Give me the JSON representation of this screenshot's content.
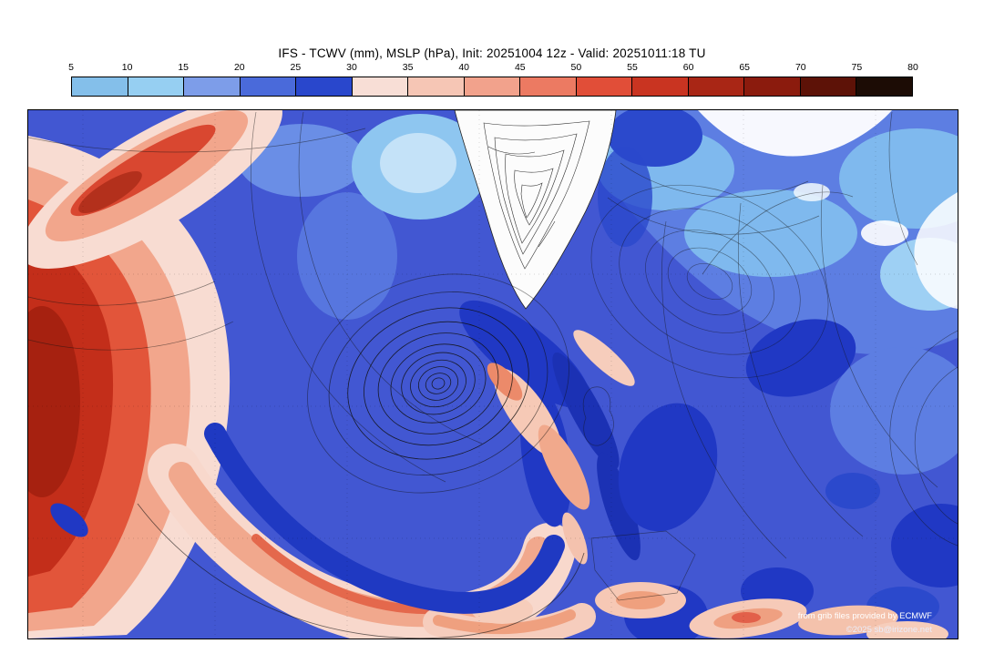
{
  "header": {
    "title": "IFS - TCWV (mm), MSLP (hPa), Init: 20251004 12z - Valid: 20251011:18 TU"
  },
  "colorbar": {
    "unit": "mm",
    "ticks": [
      "5",
      "10",
      "15",
      "20",
      "25",
      "30",
      "35",
      "40",
      "45",
      "50",
      "55",
      "60",
      "65",
      "70",
      "75",
      "80"
    ],
    "colors": [
      "#84bfea",
      "#96cff2",
      "#7d9de9",
      "#4a6ada",
      "#2947cc",
      "#f8ded6",
      "#f6c6b5",
      "#f2a28c",
      "#ec7a62",
      "#e14e38",
      "#c93421",
      "#a92615",
      "#8b1b0d",
      "#5d1207",
      "#1c0c05"
    ]
  },
  "map": {
    "credit_line1": "from grib files provided by ECMWF",
    "credit_line2": "©2025 sb@irizone.net"
  },
  "chart_data": {
    "type": "heatmap",
    "title": "IFS - TCWV (mm), MSLP (hPa), Init: 20251004 12z - Valid: 20251011:18 TU",
    "model": "IFS",
    "variables": [
      "TCWV (mm) filled colors",
      "MSLP (hPa) black contours"
    ],
    "init": "20251004 12z",
    "valid": "20251011:18 TU",
    "colorbar_ticks": [
      5,
      10,
      15,
      20,
      25,
      30,
      35,
      40,
      45,
      50,
      55,
      60,
      65,
      70,
      75,
      80
    ],
    "colorbar_colors": [
      "#84bfea",
      "#96cff2",
      "#7d9de9",
      "#4a6ada",
      "#2947cc",
      "#f8ded6",
      "#f6c6b5",
      "#f2a28c",
      "#ec7a62",
      "#e14e38",
      "#c93421",
      "#a92615",
      "#8b1b0d",
      "#5d1207",
      "#1c0c05"
    ],
    "region": "North Atlantic, Greenland and Europe",
    "notable_features": [
      "deep cyclone with tight concentric MSLP contours in the central North Atlantic",
      "high TCWV (45-60 mm) moist tropical air mass over the western Atlantic",
      "moist pink band wrapping around the southern flank of the cyclone",
      "Greenland shown white with dense terrain-following contours",
      "moderate TCWV (20-30 mm) blues covering Europe with drier dark-blue patches",
      "pink higher-TCWV patches over the Mediterranean"
    ]
  }
}
